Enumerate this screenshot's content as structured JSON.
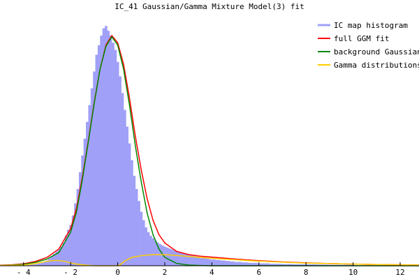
{
  "chart_data": {
    "type": "area",
    "title": "IC_41 Gaussian/Gamma Mixture Model(3) fit",
    "xlabel": "",
    "ylabel": "",
    "xlim": [
      -5.0,
      12.8
    ],
    "ylim": [
      0,
      1.05
    ],
    "x_ticks": [
      -4,
      -2,
      0,
      2,
      4,
      6,
      8,
      10,
      12
    ],
    "x_tick_labels": [
      "- 4",
      "- 2",
      "0",
      "2",
      "4",
      "6",
      "8",
      "10",
      "12"
    ],
    "grid": false,
    "legend_position": "top-right",
    "series": [
      {
        "name": "IC map histogram",
        "kind": "histogram",
        "color": "#a0a0f8",
        "bin_width": 0.1,
        "x": [
          -4.0,
          -3.9,
          -3.8,
          -3.7,
          -3.6,
          -3.5,
          -3.4,
          -3.3,
          -3.2,
          -3.1,
          -3.0,
          -2.9,
          -2.8,
          -2.7,
          -2.6,
          -2.5,
          -2.4,
          -2.3,
          -2.2,
          -2.1,
          -2.0,
          -1.9,
          -1.8,
          -1.7,
          -1.6,
          -1.5,
          -1.4,
          -1.3,
          -1.2,
          -1.1,
          -1.0,
          -0.9,
          -0.8,
          -0.7,
          -0.6,
          -0.5,
          -0.4,
          -0.3,
          -0.2,
          -0.1,
          0.0,
          0.1,
          0.2,
          0.3,
          0.4,
          0.5,
          0.6,
          0.7,
          0.8,
          0.9,
          1.0,
          1.1,
          1.2,
          1.3,
          1.4,
          1.5,
          1.6,
          1.7,
          1.8,
          1.9,
          2.0,
          2.1,
          2.2,
          2.3,
          2.4,
          2.5,
          2.6,
          2.7,
          2.8,
          2.9,
          3.0,
          3.1,
          3.2,
          3.3,
          3.4,
          3.5,
          3.6,
          3.7,
          3.8,
          3.9,
          4.0,
          4.2,
          4.4,
          4.6,
          4.8,
          5.0,
          5.3,
          5.6,
          6.0,
          6.5,
          7.0,
          7.5,
          8.0,
          8.5,
          9.0,
          10.0
        ],
        "values": [
          0.002,
          0.002,
          0.003,
          0.004,
          0.005,
          0.006,
          0.008,
          0.01,
          0.013,
          0.017,
          0.022,
          0.03,
          0.04,
          0.05,
          0.06,
          0.07,
          0.08,
          0.095,
          0.125,
          0.15,
          0.17,
          0.21,
          0.26,
          0.32,
          0.39,
          0.46,
          0.53,
          0.6,
          0.67,
          0.74,
          0.81,
          0.88,
          0.92,
          0.96,
          0.99,
          1.0,
          0.98,
          0.96,
          0.93,
          0.9,
          0.85,
          0.79,
          0.72,
          0.65,
          0.58,
          0.51,
          0.44,
          0.375,
          0.32,
          0.27,
          0.225,
          0.19,
          0.16,
          0.14,
          0.125,
          0.115,
          0.105,
          0.097,
          0.09,
          0.085,
          0.08,
          0.076,
          0.072,
          0.068,
          0.064,
          0.06,
          0.057,
          0.054,
          0.051,
          0.048,
          0.046,
          0.044,
          0.042,
          0.04,
          0.038,
          0.036,
          0.034,
          0.032,
          0.03,
          0.028,
          0.026,
          0.024,
          0.022,
          0.02,
          0.018,
          0.016,
          0.014,
          0.012,
          0.01,
          0.008,
          0.007,
          0.006,
          0.006,
          0.005,
          0.004,
          0.003
        ]
      },
      {
        "name": "full GGM fit",
        "kind": "line",
        "color": "#ff0000",
        "x": [
          -5.0,
          -4.5,
          -4.0,
          -3.5,
          -3.0,
          -2.5,
          -2.0,
          -1.75,
          -1.5,
          -1.25,
          -1.0,
          -0.75,
          -0.5,
          -0.25,
          0.0,
          0.25,
          0.5,
          0.75,
          1.0,
          1.25,
          1.5,
          1.75,
          2.0,
          2.5,
          3.0,
          3.5,
          4.0,
          5.0,
          6.0,
          7.0,
          8.0,
          9.0,
          10.0,
          11.0,
          12.0,
          12.8
        ],
        "values": [
          0.002,
          0.004,
          0.008,
          0.018,
          0.035,
          0.07,
          0.155,
          0.24,
          0.37,
          0.52,
          0.68,
          0.82,
          0.92,
          0.96,
          0.93,
          0.84,
          0.7,
          0.54,
          0.4,
          0.28,
          0.19,
          0.13,
          0.095,
          0.06,
          0.047,
          0.04,
          0.036,
          0.028,
          0.021,
          0.016,
          0.012,
          0.009,
          0.007,
          0.005,
          0.004,
          0.003
        ]
      },
      {
        "name": "background Gaussian",
        "kind": "line",
        "color": "#008800",
        "x": [
          -5.0,
          -4.5,
          -4.0,
          -3.5,
          -3.0,
          -2.5,
          -2.0,
          -1.75,
          -1.5,
          -1.25,
          -1.0,
          -0.75,
          -0.5,
          -0.25,
          0.0,
          0.25,
          0.5,
          0.75,
          1.0,
          1.25,
          1.5,
          1.75,
          2.0,
          2.5,
          3.0,
          3.5,
          4.0,
          5.0,
          6.0,
          8.0,
          10.0,
          12.8
        ],
        "values": [
          0.001,
          0.003,
          0.006,
          0.014,
          0.028,
          0.055,
          0.14,
          0.225,
          0.36,
          0.515,
          0.675,
          0.82,
          0.915,
          0.955,
          0.92,
          0.82,
          0.67,
          0.5,
          0.35,
          0.22,
          0.13,
          0.07,
          0.035,
          0.01,
          0.003,
          0.001,
          0.0,
          0.0,
          0.0,
          0.0,
          0.0,
          0.0
        ]
      },
      {
        "name": "Gamma distributions",
        "kind": "line",
        "color": "#ffcc00",
        "x": [
          -5.0,
          -4.0,
          -3.5,
          -3.0,
          -2.75,
          -2.5,
          -2.25,
          -2.0,
          -1.75,
          -1.5,
          -1.25,
          -1.0,
          0.0,
          0.1,
          0.3,
          0.6,
          1.0,
          1.5,
          2.0,
          2.5,
          3.0,
          3.5,
          4.0,
          5.0,
          6.0,
          7.0,
          8.0,
          9.0,
          10.0,
          11.0,
          12.0,
          12.8
        ],
        "values": [
          0.001,
          0.003,
          0.009,
          0.018,
          0.022,
          0.022,
          0.018,
          0.012,
          0.007,
          0.004,
          0.002,
          0.0,
          0.0,
          0.004,
          0.02,
          0.035,
          0.042,
          0.046,
          0.046,
          0.043,
          0.039,
          0.035,
          0.031,
          0.025,
          0.019,
          0.015,
          0.011,
          0.009,
          0.007,
          0.005,
          0.004,
          0.003
        ]
      }
    ]
  }
}
